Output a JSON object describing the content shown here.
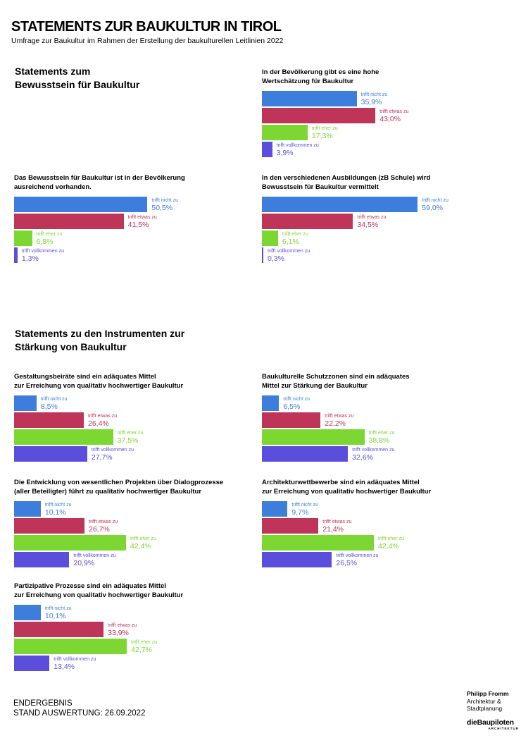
{
  "header": {
    "title": "STATEMENTS ZUR BAUKULTUR IN TIROL",
    "subtitle": "Umfrage zur Baukultur im Rahmen der Erstellung der baukulturellen Leitlinien 2022"
  },
  "sections": {
    "awareness": "Statements zum\nBewusstsein für Baukultur",
    "instruments": "Statements zu den Instrumenten zur\nStärkung von Baukultur"
  },
  "palette": [
    "#3d7edd",
    "#bf3459",
    "#7dd732",
    "#5c4edc"
  ],
  "answer_scale": [
    "trifft nicht zu",
    "trifft etwas zu",
    "trifft eher zu",
    "trifft vollkommen zu"
  ],
  "chart_data": [
    {
      "type": "bar",
      "orientation": "horizontal",
      "title": "In der Bevölkerung gibt es eine hohe\nWertschätzung für Baukultur",
      "categories": [
        "trifft nicht zu",
        "trifft etwas zu",
        "trifft eher zu",
        "trifft vollkommen zu"
      ],
      "values": [
        35.9,
        43.0,
        17.3,
        3.9
      ],
      "value_labels": [
        "35,9%",
        "43,0%",
        "17,3%",
        "3,9%"
      ],
      "unit": "%",
      "xlim": [
        0,
        100
      ]
    },
    {
      "type": "bar",
      "orientation": "horizontal",
      "title": "Das Bewusstsein für Baukultur ist in der Bevölkerung\nausreichend vorhanden.",
      "categories": [
        "trifft nicht zu",
        "trifft etwas zu",
        "trifft eher zu",
        "trifft vollkommen zu"
      ],
      "values": [
        50.5,
        41.5,
        6.8,
        1.3
      ],
      "value_labels": [
        "50,5%",
        "41,5%",
        "6,8%",
        "1,3%"
      ],
      "unit": "%",
      "xlim": [
        0,
        100
      ]
    },
    {
      "type": "bar",
      "orientation": "horizontal",
      "title": "In den verschiedenen Ausbildungen (zB Schule) wird\nBewusstsein für Baukultur vermittelt",
      "categories": [
        "trifft nicht zu",
        "trifft etwas zu",
        "trifft eher zu",
        "trifft vollkommen zu"
      ],
      "values": [
        59.0,
        34.5,
        6.1,
        0.3
      ],
      "value_labels": [
        "59,0%",
        "34,5%",
        "6,1%",
        "0,3%"
      ],
      "unit": "%",
      "xlim": [
        0,
        100
      ]
    },
    {
      "type": "bar",
      "orientation": "horizontal",
      "title": "Gestaltungsbeiräte sind ein adäquates Mittel\nzur Erreichung von qualitativ hochwertiger Baukultur",
      "categories": [
        "trifft nicht zu",
        "trifft etwas zu",
        "trifft eher zu",
        "trifft vollkommen zu"
      ],
      "values": [
        8.5,
        26.4,
        37.5,
        27.7
      ],
      "value_labels": [
        "8,5%",
        "26,4%",
        "37,5%",
        "27,7%"
      ],
      "unit": "%",
      "xlim": [
        0,
        100
      ]
    },
    {
      "type": "bar",
      "orientation": "horizontal",
      "title": "Baukulturelle Schutzzonen sind ein adäquates\nMittel zur Stärkung der Baukultur",
      "categories": [
        "trifft nicht zu",
        "trifft etwas zu",
        "trifft eher zu",
        "trifft vollkommen zu"
      ],
      "values": [
        6.5,
        22.2,
        38.8,
        32.6
      ],
      "value_labels": [
        "6,5%",
        "22,2%",
        "38,8%",
        "32,6%"
      ],
      "unit": "%",
      "xlim": [
        0,
        100
      ]
    },
    {
      "type": "bar",
      "orientation": "horizontal",
      "title": "Die Entwicklung von wesentlichen Projekten über Dialogprozesse\n(aller Beteiligter) führt zu qualitativ hochwertiger Baukultur",
      "categories": [
        "trifft nicht zu",
        "trifft etwas zu",
        "trifft eher zu",
        "trifft vollkommen zu"
      ],
      "values": [
        10.1,
        26.7,
        42.4,
        20.9
      ],
      "value_labels": [
        "10,1%",
        "26,7%",
        "42,4%",
        "20,9%"
      ],
      "unit": "%",
      "xlim": [
        0,
        100
      ]
    },
    {
      "type": "bar",
      "orientation": "horizontal",
      "title": "Architekturwettbewerbe sind ein adäquates Mittel\nzur Erreichung von qualitativ hochwertiger Baukultur",
      "categories": [
        "trifft nicht zu",
        "trifft etwas zu",
        "trifft eher zu",
        "trifft vollkommen zu"
      ],
      "values": [
        9.7,
        21.4,
        42.4,
        26.5
      ],
      "value_labels": [
        "9,7%",
        "21,4%",
        "42,4%",
        "26,5%"
      ],
      "unit": "%",
      "xlim": [
        0,
        100
      ]
    },
    {
      "type": "bar",
      "orientation": "horizontal",
      "title": "Partizipative Prozesse sind ein adäquates Mittel\nzur Erreichung von qualitativ hochwertiger Baukultur",
      "categories": [
        "trifft nicht zu",
        "trifft etwas zu",
        "trifft eher zu",
        "trifft vollkommen zu"
      ],
      "values": [
        10.1,
        33.9,
        42.7,
        13.4
      ],
      "value_labels": [
        "10,1%",
        "33,9%",
        "42,7%",
        "13,4%"
      ],
      "unit": "%",
      "xlim": [
        0,
        100
      ]
    }
  ],
  "footer": {
    "result_status": "ENDERGEBNIS",
    "evaluation_date": "STAND AUSWERTUNG: 26.09.2022"
  },
  "logo": {
    "name": "Philipp Fromm",
    "line2": "Architektur &",
    "line3": "Stadtplanung",
    "brand": "dieBaupiloten",
    "brand_sub": "ARCHITEKTUR"
  }
}
